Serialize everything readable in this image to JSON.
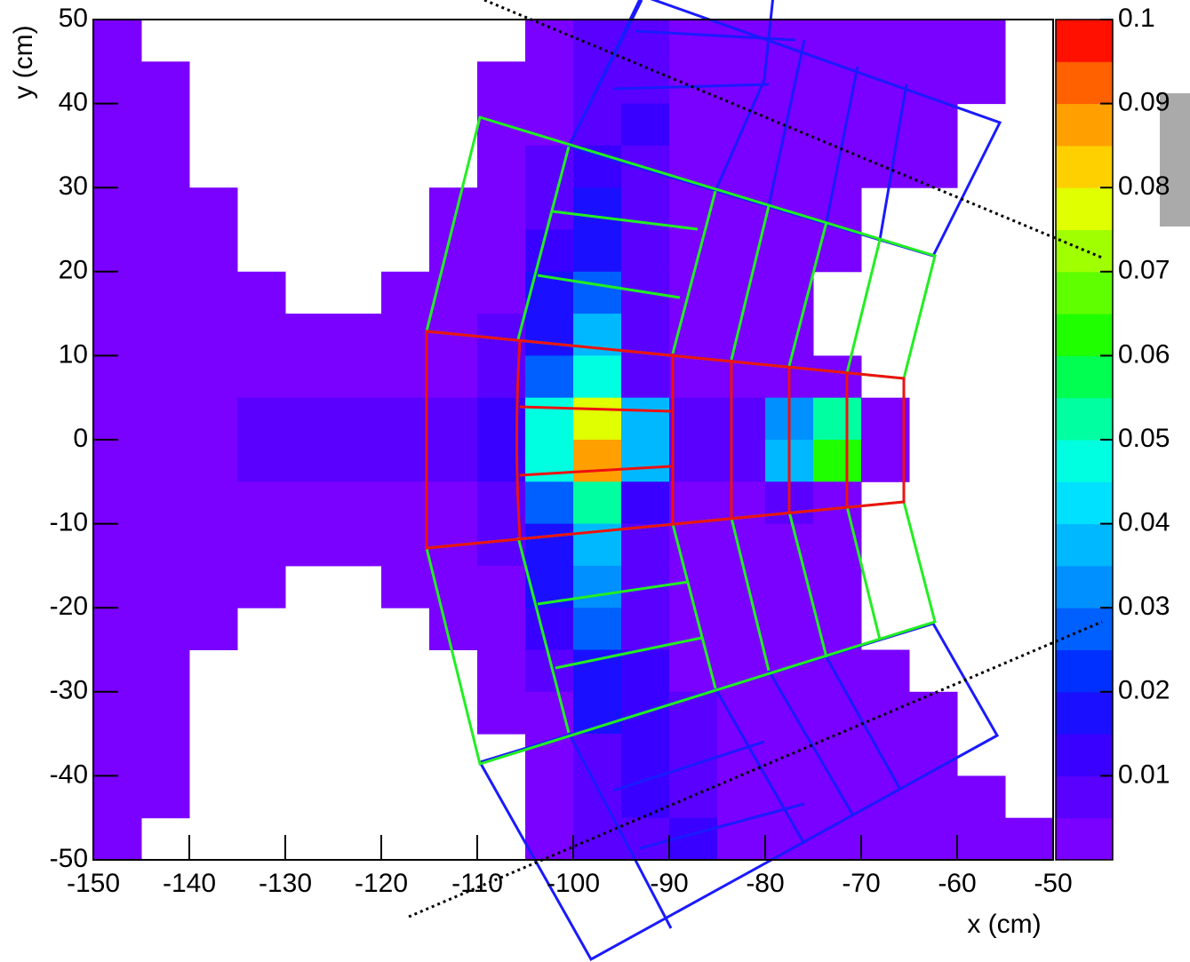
{
  "chart_data": {
    "type": "heatmap",
    "x_label": "x (cm)",
    "y_label": "y (cm)",
    "xlim": [
      -150,
      -50
    ],
    "ylim": [
      -50,
      50
    ],
    "zlim": [
      0,
      0.1
    ],
    "xticks": [
      -150,
      -140,
      -130,
      -120,
      -110,
      -100,
      -90,
      -80,
      -70,
      -60,
      -50
    ],
    "yticks": [
      -50,
      -40,
      -30,
      -20,
      -10,
      0,
      10,
      20,
      30,
      40,
      50
    ],
    "zticks": [
      0.01,
      0.02,
      0.03,
      0.04,
      0.05,
      0.06,
      0.07,
      0.08,
      0.09,
      0.1
    ],
    "palette": [
      "#7a00ff",
      "#5a00ff",
      "#3a00ff",
      "#1a10ff",
      "#0030ff",
      "#0060ff",
      "#0090ff",
      "#00b8ff",
      "#00e0ff",
      "#00ffe0",
      "#00ffa0",
      "#00ff50",
      "#20ff00",
      "#60ff00",
      "#a0ff00",
      "#e0ff00",
      "#ffd000",
      "#ffa000",
      "#ff6000",
      "#ff1000"
    ],
    "xbins": [
      -150,
      -145,
      -140,
      -135,
      -130,
      -125,
      -120,
      -115,
      -110,
      -105,
      -100,
      -95,
      -90,
      -85,
      -80,
      -75,
      -70,
      -65,
      -60,
      -55,
      -50
    ],
    "ybins": [
      50,
      45,
      40,
      35,
      30,
      25,
      20,
      15,
      10,
      5,
      0,
      -5,
      -10,
      -15,
      -20,
      -25,
      -30,
      -35,
      -40,
      -45,
      -50
    ],
    "z": [
      [
        0.003,
        null,
        null,
        null,
        null,
        null,
        null,
        null,
        null,
        0.003,
        0.006,
        0.008,
        0.004,
        0.003,
        0.003,
        0.003,
        0.003,
        0.003,
        0.003,
        null
      ],
      [
        0.003,
        0.003,
        null,
        null,
        null,
        null,
        null,
        null,
        0.003,
        0.004,
        0.008,
        0.01,
        0.004,
        0.003,
        0.003,
        0.003,
        0.003,
        0.003,
        0.002,
        null
      ],
      [
        0.003,
        0.003,
        null,
        null,
        null,
        null,
        null,
        null,
        0.003,
        0.005,
        0.01,
        0.012,
        0.005,
        0.003,
        0.003,
        0.003,
        0.003,
        0.003,
        null,
        null
      ],
      [
        0.004,
        0.003,
        null,
        null,
        null,
        null,
        null,
        null,
        0.003,
        0.006,
        0.012,
        0.01,
        0.004,
        0.003,
        0.003,
        0.003,
        0.002,
        0.002,
        null,
        null
      ],
      [
        0.003,
        0.003,
        0.003,
        null,
        null,
        null,
        null,
        0.002,
        0.003,
        0.008,
        0.015,
        0.008,
        0.004,
        0.003,
        0.003,
        0.002,
        null,
        null,
        null,
        null
      ],
      [
        0.003,
        0.003,
        0.003,
        null,
        null,
        null,
        null,
        0.003,
        0.004,
        0.012,
        0.02,
        0.006,
        0.003,
        0.003,
        0.002,
        0.002,
        null,
        null,
        null,
        null
      ],
      [
        0.004,
        0.003,
        0.003,
        0.003,
        null,
        null,
        0.003,
        0.003,
        0.005,
        0.015,
        0.025,
        0.006,
        0.003,
        0.003,
        0.002,
        null,
        null,
        null,
        null,
        null
      ],
      [
        0.004,
        0.004,
        0.003,
        0.003,
        0.003,
        0.003,
        0.003,
        0.004,
        0.006,
        0.02,
        0.035,
        0.008,
        0.003,
        0.003,
        0.002,
        null,
        null,
        null,
        null,
        null
      ],
      [
        0.004,
        0.004,
        0.004,
        0.004,
        0.004,
        0.004,
        0.004,
        0.005,
        0.006,
        0.025,
        0.045,
        0.01,
        0.004,
        0.004,
        0.005,
        0.004,
        null,
        null,
        null,
        null
      ],
      [
        0.005,
        0.005,
        0.005,
        0.006,
        0.006,
        0.007,
        0.008,
        0.01,
        0.012,
        0.045,
        0.08,
        0.04,
        0.006,
        0.006,
        0.03,
        0.05,
        0.004,
        null,
        null,
        null
      ],
      [
        0.005,
        0.005,
        0.005,
        0.006,
        0.006,
        0.007,
        0.008,
        0.01,
        0.012,
        0.045,
        0.085,
        0.035,
        0.006,
        0.006,
        0.035,
        0.06,
        0.004,
        null,
        null,
        null
      ],
      [
        0.004,
        0.004,
        0.004,
        0.004,
        0.004,
        0.004,
        0.004,
        0.005,
        0.006,
        0.025,
        0.05,
        0.012,
        0.004,
        0.004,
        0.008,
        0.005,
        null,
        null,
        null,
        null
      ],
      [
        0.004,
        0.004,
        0.003,
        0.003,
        0.003,
        0.003,
        0.003,
        0.004,
        0.006,
        0.02,
        0.04,
        0.008,
        0.003,
        0.003,
        0.003,
        0.002,
        null,
        null,
        null,
        null
      ],
      [
        0.004,
        0.003,
        0.003,
        0.003,
        null,
        null,
        0.002,
        0.003,
        0.005,
        0.015,
        0.03,
        0.008,
        0.003,
        0.003,
        0.003,
        0.003,
        null,
        null,
        null,
        null
      ],
      [
        0.003,
        0.003,
        0.002,
        null,
        null,
        null,
        null,
        0.003,
        0.004,
        0.012,
        0.025,
        0.01,
        0.004,
        0.003,
        0.003,
        0.003,
        null,
        null,
        null,
        null
      ],
      [
        0.003,
        0.003,
        null,
        null,
        null,
        null,
        null,
        null,
        0.003,
        0.008,
        0.02,
        0.012,
        0.005,
        0.003,
        0.003,
        0.003,
        0.002,
        null,
        null,
        null
      ],
      [
        0.003,
        0.003,
        null,
        null,
        null,
        null,
        null,
        null,
        0.003,
        0.005,
        0.015,
        0.012,
        0.006,
        0.003,
        0.003,
        0.003,
        0.003,
        0.002,
        null,
        null
      ],
      [
        0.003,
        0.003,
        null,
        null,
        null,
        null,
        null,
        null,
        null,
        0.004,
        0.01,
        0.012,
        0.008,
        0.004,
        0.003,
        0.003,
        0.003,
        0.003,
        null,
        null
      ],
      [
        0.003,
        0.002,
        null,
        null,
        null,
        null,
        null,
        null,
        null,
        0.003,
        0.008,
        0.012,
        0.01,
        0.004,
        0.003,
        0.003,
        0.003,
        0.003,
        0.002,
        null
      ],
      [
        0.003,
        null,
        null,
        null,
        null,
        null,
        null,
        null,
        null,
        0.003,
        0.006,
        0.01,
        0.012,
        0.005,
        0.003,
        0.003,
        0.003,
        0.003,
        0.003,
        0.003
      ]
    ]
  }
}
